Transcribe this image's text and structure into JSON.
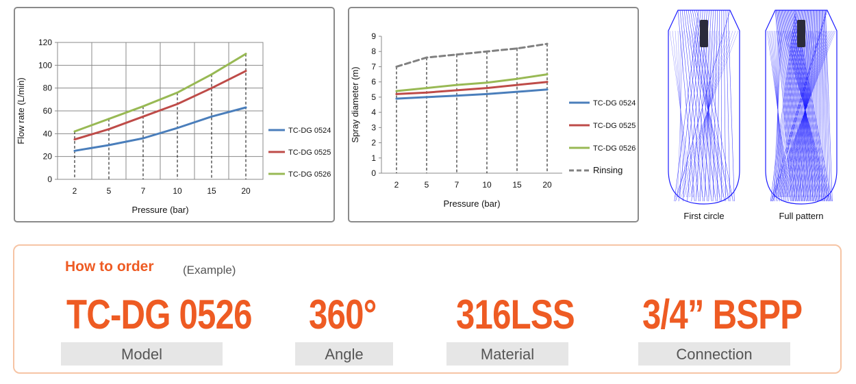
{
  "chart_data": [
    {
      "type": "line",
      "categories": [
        "2",
        "5",
        "7",
        "10",
        "15",
        "20"
      ],
      "xlabel": "Pressure (bar)",
      "ylabel": "Flow rate (L/min)",
      "ylim": [
        0,
        120
      ],
      "yticks": [
        "0",
        "20",
        "40",
        "60",
        "80",
        "100",
        "120"
      ],
      "grid": true,
      "legend_position": "right",
      "series": [
        {
          "name": "TC-DG 0524",
          "color": "#4a7ebb",
          "values": [
            25,
            30,
            36,
            45,
            55,
            63
          ]
        },
        {
          "name": "TC-DG 0525",
          "color": "#be4b48",
          "values": [
            35,
            44,
            55,
            66,
            80,
            95
          ]
        },
        {
          "name": "TC-DG 0526",
          "color": "#98b954",
          "values": [
            42,
            53,
            64,
            76,
            92,
            110
          ]
        }
      ]
    },
    {
      "type": "line",
      "categories": [
        "2",
        "5",
        "7",
        "10",
        "15",
        "20"
      ],
      "xlabel": "Pressure (bar)",
      "ylabel": "Spray diameter (m)",
      "ylim": [
        0,
        9
      ],
      "yticks": [
        "0",
        "1",
        "2",
        "3",
        "4",
        "5",
        "6",
        "7",
        "8",
        "9"
      ],
      "grid": false,
      "legend_position": "right",
      "series": [
        {
          "name": "TC-DG 0524",
          "color": "#4a7ebb",
          "values": [
            4.9,
            5.0,
            5.1,
            5.2,
            5.35,
            5.5
          ]
        },
        {
          "name": "TC-DG 0525",
          "color": "#be4b48",
          "values": [
            5.2,
            5.3,
            5.45,
            5.6,
            5.8,
            6.0
          ]
        },
        {
          "name": "TC-DG 0526",
          "color": "#98b954",
          "values": [
            5.4,
            5.6,
            5.8,
            5.95,
            6.2,
            6.5
          ]
        },
        {
          "name": "Rinsing",
          "color": "#808080",
          "dashed": true,
          "values": [
            7.0,
            7.6,
            7.8,
            8.0,
            8.2,
            8.5
          ]
        }
      ]
    }
  ],
  "patterns": {
    "first_label": "First circle",
    "full_label": "Full pattern",
    "line_color": "#1a1aff"
  },
  "order": {
    "title": "How to order",
    "example": "(Example)",
    "accent_color": "#ee5b23",
    "specs": [
      {
        "value": "TC-DG 0526",
        "label": "Model"
      },
      {
        "value": "360°",
        "label": "Angle"
      },
      {
        "value": "316LSS",
        "label": "Material"
      },
      {
        "value": "3/4” BSPP",
        "label": "Connection"
      }
    ]
  }
}
